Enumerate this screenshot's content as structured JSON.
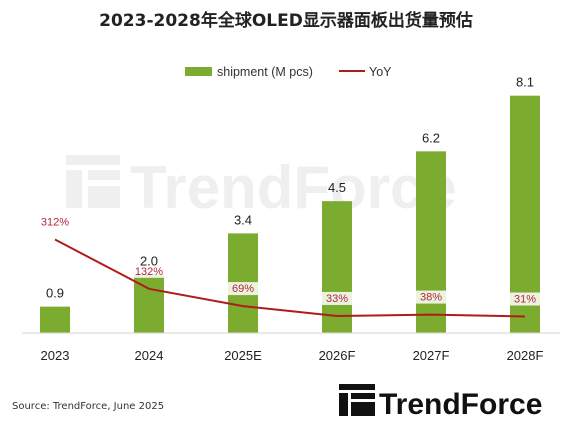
{
  "chart_data": {
    "type": "bar",
    "title": "2023-2028年全球OLED显示器面板出货量预估",
    "categories": [
      "2023",
      "2024",
      "2025E",
      "2026F",
      "2027F",
      "2028F"
    ],
    "series": [
      {
        "name": "shipment (M pcs)",
        "type": "bar",
        "values": [
          0.9,
          2.0,
          3.4,
          4.5,
          6.2,
          8.1
        ],
        "labels": [
          "0.9",
          "2.0",
          "3.4",
          "4.5",
          "6.2",
          "8.1"
        ]
      },
      {
        "name": "YoY",
        "type": "line",
        "values": [
          null,
          132,
          69,
          33,
          38,
          31
        ],
        "labels": [
          "312%",
          "132%",
          "69%",
          "33%",
          "38%",
          "31%"
        ]
      }
    ],
    "legend_position": "top",
    "grid": false,
    "colors": {
      "bar": "#7bab2f",
      "line": "#b01c1c",
      "yoy_label": "#b0283a"
    }
  },
  "source": "Source: TrendForce, June 2025",
  "watermark": "TrendForce",
  "logo": "TrendForce"
}
